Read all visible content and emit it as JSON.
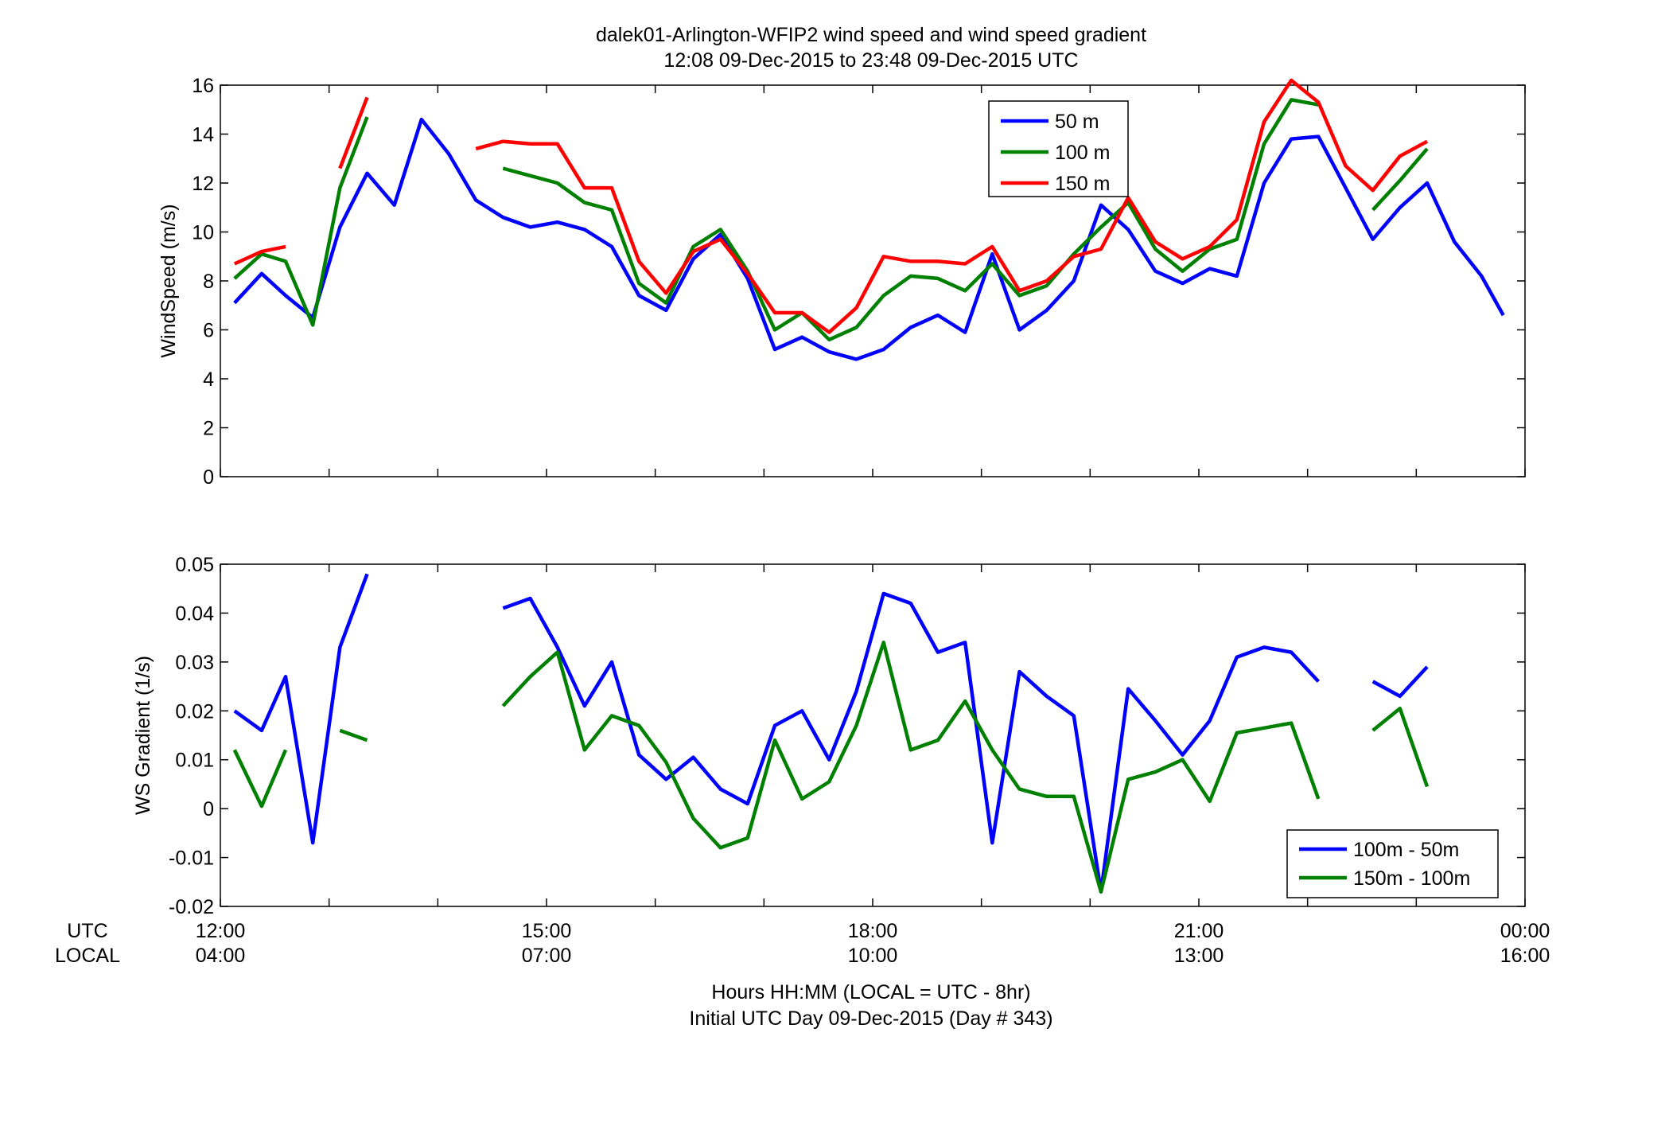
{
  "title": {
    "line1": "dalek01-Arlington-WFIP2  wind speed and wind speed gradient",
    "line2": "12:08 09-Dec-2015 to 23:48 09-Dec-2015  UTC"
  },
  "x_axis": {
    "row_labels": {
      "utc": "UTC",
      "local": "LOCAL"
    },
    "ticks": [
      {
        "utc": "12:00",
        "local": "04:00"
      },
      {
        "utc": "15:00",
        "local": "07:00"
      },
      {
        "utc": "18:00",
        "local": "10:00"
      },
      {
        "utc": "21:00",
        "local": "13:00"
      },
      {
        "utc": "00:00",
        "local": "16:00"
      }
    ],
    "label_line1": "Hours HH:MM  (LOCAL = UTC - 8hr)",
    "label_line2": "Initial UTC Day 09-Dec-2015 (Day # 343)"
  },
  "chart_data": [
    {
      "type": "line",
      "ylabel": "WindSpeed (m/s)",
      "xlim_hours_utc": [
        12,
        24
      ],
      "ylim": [
        0,
        16
      ],
      "yticks": [
        "0",
        "2",
        "4",
        "6",
        "8",
        "10",
        "12",
        "14",
        "16"
      ],
      "legend_position": "top-center",
      "x_hours_utc": [
        12.13,
        12.38,
        12.6,
        12.85,
        13.1,
        13.35,
        13.6,
        13.85,
        14.1,
        14.35,
        14.6,
        14.85,
        15.1,
        15.35,
        15.6,
        15.85,
        16.1,
        16.35,
        16.6,
        16.85,
        17.1,
        17.35,
        17.6,
        17.85,
        18.1,
        18.35,
        18.6,
        18.85,
        19.1,
        19.35,
        19.6,
        19.85,
        20.1,
        20.35,
        20.6,
        20.85,
        21.1,
        21.35,
        21.6,
        21.85,
        22.1,
        22.35,
        22.6,
        22.85,
        23.1,
        23.35,
        23.6,
        23.8
      ],
      "series": [
        {
          "name": "50 m",
          "color": "#0000ff",
          "values": [
            7.1,
            8.3,
            7.4,
            6.5,
            10.2,
            12.4,
            11.1,
            14.6,
            13.2,
            11.3,
            10.6,
            10.2,
            10.4,
            10.1,
            9.4,
            7.4,
            6.8,
            8.9,
            9.9,
            8.1,
            5.2,
            5.7,
            5.1,
            4.8,
            5.2,
            6.1,
            6.6,
            5.9,
            9.1,
            6.0,
            6.8,
            8.0,
            11.1,
            10.1,
            8.4,
            7.9,
            8.5,
            8.2,
            12.0,
            13.8,
            13.9,
            11.8,
            9.7,
            11.0,
            12.0,
            9.6,
            8.2,
            6.6
          ]
        },
        {
          "name": "100 m",
          "color": "#008000",
          "values": [
            8.1,
            9.1,
            8.8,
            6.2,
            11.8,
            14.7,
            null,
            null,
            null,
            null,
            12.6,
            12.3,
            12.0,
            11.2,
            10.9,
            7.9,
            7.1,
            9.4,
            10.1,
            8.4,
            6.0,
            6.7,
            5.6,
            6.1,
            7.4,
            8.2,
            8.1,
            7.6,
            8.7,
            7.4,
            7.8,
            9.1,
            10.2,
            11.2,
            9.3,
            8.4,
            9.3,
            9.7,
            13.6,
            15.4,
            15.2,
            null,
            10.9,
            12.1,
            13.4,
            null,
            null,
            null
          ]
        },
        {
          "name": "150 m",
          "color": "#ff0000",
          "values": [
            8.7,
            9.2,
            9.4,
            null,
            12.6,
            15.5,
            null,
            null,
            null,
            13.4,
            13.7,
            13.6,
            13.6,
            11.8,
            11.8,
            8.8,
            7.5,
            9.2,
            9.7,
            8.3,
            6.7,
            6.7,
            5.9,
            6.9,
            9.0,
            8.8,
            8.8,
            8.7,
            9.4,
            7.6,
            8.0,
            9.0,
            9.3,
            11.4,
            9.6,
            8.9,
            9.4,
            10.5,
            14.5,
            16.2,
            15.3,
            12.7,
            11.7,
            13.1,
            13.7,
            null,
            null,
            null
          ]
        }
      ]
    },
    {
      "type": "line",
      "ylabel": "WS Gradient (1/s)",
      "xlim_hours_utc": [
        12,
        24
      ],
      "ylim": [
        -0.02,
        0.05
      ],
      "yticks": [
        "-0.02",
        "-0.01",
        "0",
        "0.01",
        "0.02",
        "0.03",
        "0.04",
        "0.05"
      ],
      "legend_position": "bottom-right",
      "x_hours_utc": [
        12.13,
        12.38,
        12.6,
        12.85,
        13.1,
        13.35,
        13.6,
        13.85,
        14.1,
        14.35,
        14.6,
        14.85,
        15.1,
        15.35,
        15.6,
        15.85,
        16.1,
        16.35,
        16.6,
        16.85,
        17.1,
        17.35,
        17.6,
        17.85,
        18.1,
        18.35,
        18.6,
        18.85,
        19.1,
        19.35,
        19.6,
        19.85,
        20.1,
        20.35,
        20.6,
        20.85,
        21.1,
        21.35,
        21.6,
        21.85,
        22.1,
        22.35,
        22.6,
        22.85,
        23.1,
        23.35,
        23.6,
        23.8
      ],
      "series": [
        {
          "name": "100m - 50m",
          "color": "#0000ff",
          "values": [
            0.02,
            0.016,
            0.027,
            -0.007,
            0.033,
            0.048,
            null,
            null,
            null,
            null,
            0.041,
            0.043,
            0.033,
            0.021,
            0.03,
            0.011,
            0.006,
            0.0105,
            0.004,
            0.001,
            0.017,
            0.02,
            0.01,
            0.024,
            0.044,
            0.042,
            0.032,
            0.034,
            -0.007,
            0.028,
            0.023,
            0.019,
            -0.017,
            0.0245,
            0.018,
            0.011,
            0.018,
            0.031,
            0.033,
            0.032,
            0.026,
            null,
            0.026,
            0.023,
            0.029,
            null,
            null,
            null
          ]
        },
        {
          "name": "150m - 100m",
          "color": "#008000",
          "values": [
            0.012,
            0.0005,
            0.012,
            null,
            0.016,
            0.014,
            null,
            null,
            null,
            null,
            0.021,
            0.027,
            0.032,
            0.012,
            0.019,
            0.017,
            0.0095,
            -0.002,
            -0.008,
            -0.006,
            0.014,
            0.002,
            0.0055,
            0.017,
            0.034,
            0.012,
            0.014,
            0.022,
            0.012,
            0.004,
            0.0025,
            0.0025,
            -0.017,
            0.006,
            0.0075,
            0.01,
            0.0015,
            0.0155,
            0.0165,
            0.0175,
            0.002,
            null,
            0.016,
            0.0205,
            0.0045,
            null,
            null,
            null
          ]
        }
      ]
    }
  ]
}
